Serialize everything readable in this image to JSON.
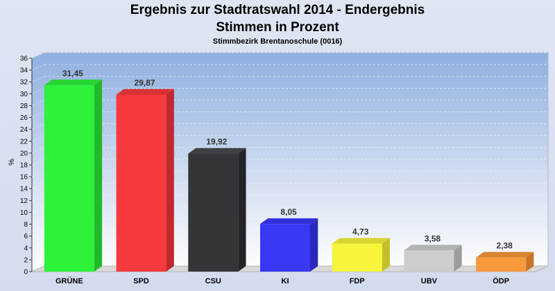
{
  "chart_data": {
    "type": "bar",
    "title": "Ergebnis zur Stadtratswahl 2014 - Endergebnis",
    "subtitle": "Stimmen in Prozent",
    "caption": "Stimmbezirk Brentanoschule (0016)",
    "ylabel": "%",
    "ylim": [
      0,
      36
    ],
    "ytick_step": 2,
    "grid": true,
    "categories": [
      "GRÜNE",
      "SPD",
      "CSU",
      "KI",
      "FDP",
      "UBV",
      "ÖDP"
    ],
    "value_labels": [
      "31,45",
      "29,87",
      "19,92",
      "8,05",
      "4,73",
      "3,58",
      "2,38"
    ],
    "values": [
      31.45,
      29.87,
      19.92,
      8.05,
      4.73,
      3.58,
      2.38
    ],
    "colors": [
      "#2ef23a",
      "#f53a3e",
      "#343539",
      "#3838f5",
      "#f7f43c",
      "#cdcdcd",
      "#f79a3c"
    ],
    "side_colors": [
      "#22b82b",
      "#c02a2e",
      "#232428",
      "#2828bb",
      "#c2c02a",
      "#9c9c9c",
      "#c5742a"
    ],
    "top_colors": [
      "#27d431",
      "#d93135",
      "#3f4045",
      "#3030d8",
      "#d8d530",
      "#b2b2b2",
      "#d98530"
    ]
  }
}
